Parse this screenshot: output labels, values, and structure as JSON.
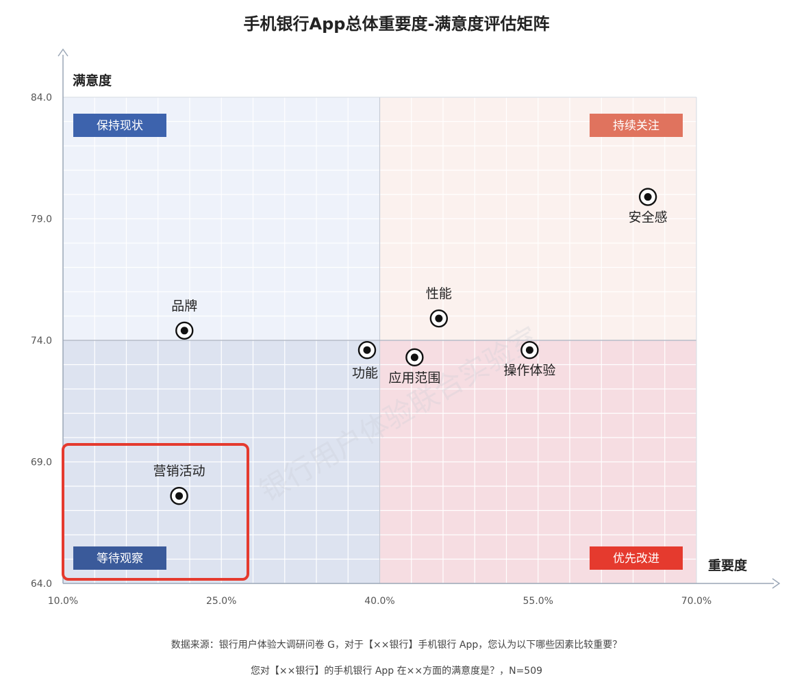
{
  "chart_data": {
    "type": "scatter",
    "title": "手机银行App总体重要度-满意度评估矩阵",
    "xlabel": "重要度",
    "ylabel": "满意度",
    "xlim": [
      10,
      70
    ],
    "ylim": [
      64,
      84
    ],
    "x_ticks": [
      "10.0%",
      "25.0%",
      "40.0%",
      "55.0%",
      "70.0%"
    ],
    "y_ticks": [
      "64.0",
      "69.0",
      "74.0",
      "79.0",
      "84.0"
    ],
    "divider": {
      "x": 40,
      "y": 74
    },
    "points": [
      {
        "label": "安全感",
        "x": 65.4,
        "y": 79.9,
        "label_pos": "below"
      },
      {
        "label": "性能",
        "x": 45.6,
        "y": 74.9,
        "label_pos": "above"
      },
      {
        "label": "品牌",
        "x": 21.5,
        "y": 74.4,
        "label_pos": "above"
      },
      {
        "label": "功能",
        "x": 38.8,
        "y": 73.6,
        "label_pos": "below-left"
      },
      {
        "label": "应用范围",
        "x": 43.3,
        "y": 73.3,
        "label_pos": "below"
      },
      {
        "label": "操作体验",
        "x": 54.2,
        "y": 73.6,
        "label_pos": "below"
      },
      {
        "label": "营销活动",
        "x": 21.0,
        "y": 67.6,
        "label_pos": "above"
      }
    ],
    "quadrants": [
      {
        "label": "保持现状",
        "position": "top-left",
        "fill": "#eef2fa",
        "tag_color": "#3d63ad"
      },
      {
        "label": "持续关注",
        "position": "top-right",
        "fill": "#fbf1ee",
        "tag_color": "#e0735e"
      },
      {
        "label": "等待观察",
        "position": "bottom-left",
        "fill": "#dde3f0",
        "tag_color": "#3a5a9a"
      },
      {
        "label": "优先改进",
        "position": "bottom-right",
        "fill": "#f6dde2",
        "tag_color": "#e53a2e"
      }
    ],
    "highlight": {
      "quadrant": "bottom-left",
      "color": "#e53a2e"
    },
    "grid": true
  },
  "source_lines": [
    "数据来源：银行用户体验大调研问卷 G，对于【××银行】手机银行 App，您认为以下哪些因素比较重要？",
    "您对【××银行】的手机银行 App 在××方面的满意度是？，N=509"
  ],
  "watermark": "银行用户体验联合实验室"
}
